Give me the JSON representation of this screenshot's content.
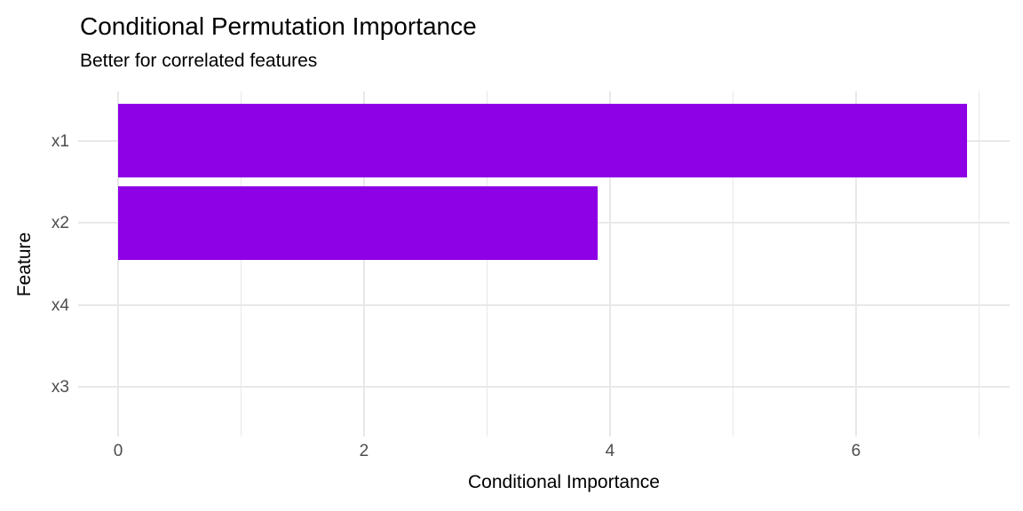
{
  "chart_data": {
    "type": "bar",
    "orientation": "horizontal",
    "title": "Conditional Permutation Importance",
    "subtitle": "Better for correlated features",
    "xlabel": "Conditional Importance",
    "ylabel": "Feature",
    "categories": [
      "x1",
      "x2",
      "x4",
      "x3"
    ],
    "values": [
      6.9,
      3.9,
      0,
      0
    ],
    "xlim": [
      0,
      7.25
    ],
    "x_major_ticks": [
      0,
      2,
      4,
      6
    ],
    "x_minor_gridlines": [
      1,
      3,
      5,
      7
    ],
    "grid": "vertical major+minor, horizontal major at category centers",
    "legend": "none",
    "bar_color": "#8E00E6",
    "gridline_color": "#E8E8E8",
    "tick_label_color": "#4D4D4D",
    "title_color": "#000000",
    "background_color": "#FFFFFF"
  }
}
